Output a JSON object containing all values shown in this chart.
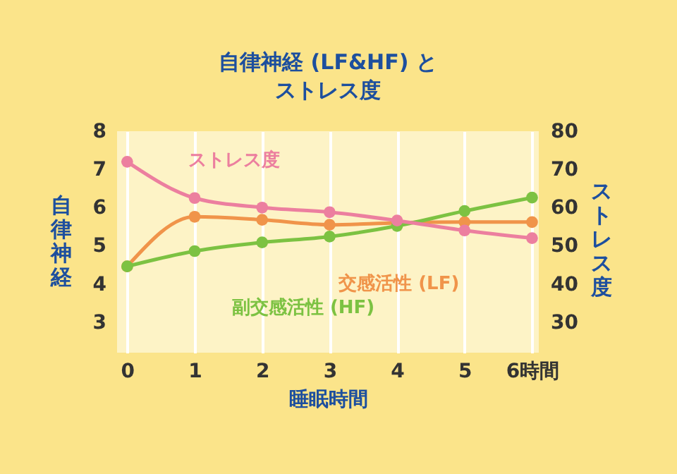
{
  "chart_data": {
    "type": "line",
    "title": "自律神経 (LF&HF) とストレス度",
    "xlabel": "睡眠時間",
    "ylabel": "自律神経",
    "y2label": "ストレス度",
    "x": [
      0,
      1,
      2,
      3,
      4,
      5,
      6
    ],
    "xlim": [
      -0.15,
      6.1
    ],
    "xticks": [
      0,
      1,
      2,
      3,
      4,
      5,
      {
        "value": 6,
        "label": "6時間"
      }
    ],
    "ylim": [
      2.2,
      8
    ],
    "yticks": [
      3,
      4,
      5,
      6,
      7,
      8
    ],
    "y2lim": [
      22,
      80
    ],
    "y2ticks": [
      30,
      40,
      50,
      60,
      70,
      80
    ],
    "series": [
      {
        "name": "交感活性 (LF)",
        "color": "#f0944a",
        "values": [
          4.46,
          5.76,
          5.68,
          5.55,
          5.6,
          5.62,
          5.62
        ]
      },
      {
        "name": "副交感活性 (HF)",
        "color": "#7cc242",
        "values": [
          4.46,
          4.86,
          5.09,
          5.24,
          5.52,
          5.91,
          6.26
        ]
      },
      {
        "name": "ストレス度",
        "color": "#ec7f9f",
        "axis": "y2",
        "values": [
          72,
          62.5,
          60,
          58.8,
          56.6,
          54,
          52
        ]
      }
    ],
    "grid": "x",
    "legend": false,
    "marker": "circle"
  }
}
